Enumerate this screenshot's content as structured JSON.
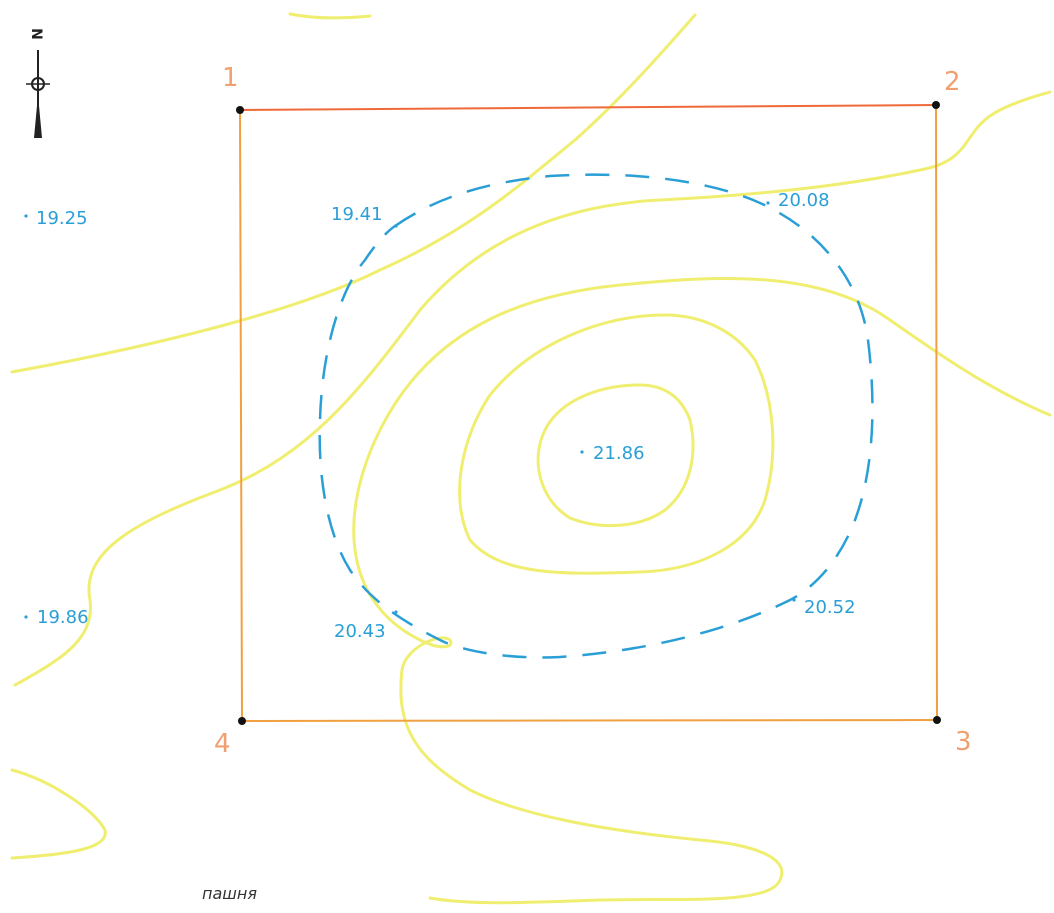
{
  "colors": {
    "background": "#ffffff",
    "boundary": "#f0a040",
    "boundary_top": "#ef6a3a",
    "corner_label": "#f0a070",
    "elevation": "#2a9fd6",
    "contour": "#f0ee70",
    "station_dot": "#111111",
    "north_arrow": "#222222",
    "land_use_text": "#333333"
  },
  "north_arrow": {
    "icon": "north-arrow-icon",
    "letter": "N"
  },
  "corners": [
    {
      "id": "1",
      "label": "1"
    },
    {
      "id": "2",
      "label": "2"
    },
    {
      "id": "3",
      "label": "3"
    },
    {
      "id": "4",
      "label": "4"
    }
  ],
  "elevations": [
    {
      "id": "e1925",
      "label": "19.25"
    },
    {
      "id": "e1941",
      "label": "19.41"
    },
    {
      "id": "e2008",
      "label": "20.08"
    },
    {
      "id": "e2186",
      "label": "21.86"
    },
    {
      "id": "e1986",
      "label": "19.86"
    },
    {
      "id": "e2043",
      "label": "20.43"
    },
    {
      "id": "e2052",
      "label": "20.52"
    }
  ],
  "land_use": {
    "label": "пашня"
  }
}
